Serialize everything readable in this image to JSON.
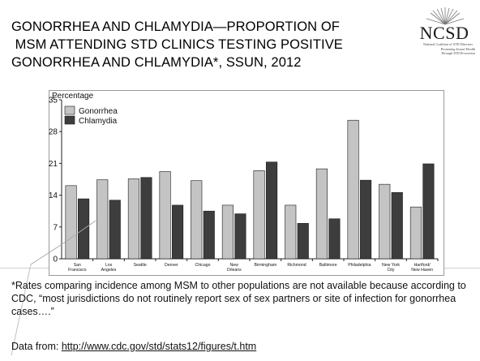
{
  "slide": {
    "title_lines": [
      "GONORRHEA AND CHLAMYDIA—PROPORTION OF",
      " MSM ATTENDING STD CLINICS TESTING POSITIVE",
      "GONORRHEA AND CHLAMYDIA*, SSUN, 2012"
    ],
    "footnote": "*Rates comparing incidence among MSM to other populations are not available because according to CDC, “most jurisdictions do not routinely report sex of sex partners or site of infection for gonorrhea cases….”",
    "source_prefix": "Data from: ",
    "source_link": "http://www.cdc.gov/std/stats12/figures/t.htm"
  },
  "logo": {
    "acronym": "NCSD",
    "org_name": "National Coalition of STD Directors",
    "tagline_lines": [
      "Promoting Sexual Health",
      "Through STD Prevention"
    ]
  },
  "colors": {
    "gonorrhea": "#c4c4c4",
    "chlamydia": "#3d3d3d",
    "axis": "#222222",
    "frame": "#9a9a9a"
  },
  "chart_data": {
    "type": "bar",
    "ylabel": "Percentage",
    "ylim": [
      0,
      35
    ],
    "yticks": [
      0,
      7,
      14,
      21,
      28,
      35
    ],
    "grid": false,
    "legend_position": "top-left",
    "categories": [
      [
        "San",
        "Francisco"
      ],
      [
        "Los",
        "Angeles"
      ],
      [
        "Seattle"
      ],
      [
        "Denver"
      ],
      [
        "Chicago"
      ],
      [
        "New",
        "Orleans"
      ],
      [
        "Birmingham"
      ],
      [
        "Richmond"
      ],
      [
        "Baltimore"
      ],
      [
        "Philadelphia"
      ],
      [
        "New York",
        "City"
      ],
      [
        "Hartford/",
        "New Haven"
      ]
    ],
    "series": [
      {
        "name": "Gonorrhea",
        "values": [
          16.1,
          17.4,
          17.6,
          19.2,
          17.2,
          11.8,
          19.4,
          11.8,
          19.8,
          30.5,
          16.4,
          11.4
        ]
      },
      {
        "name": "Chlamydia",
        "values": [
          13.2,
          12.9,
          17.9,
          11.8,
          10.5,
          9.9,
          21.3,
          7.8,
          8.8,
          17.3,
          14.6,
          20.9
        ]
      }
    ]
  }
}
